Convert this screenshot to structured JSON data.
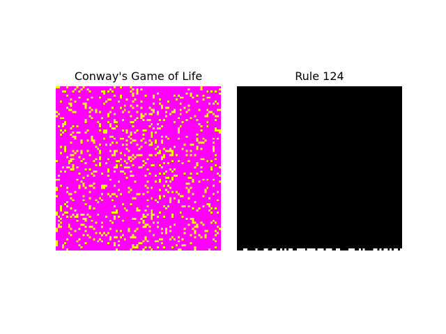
{
  "panels": [
    {
      "title": "Conway's Game of Life",
      "grid_size": 80,
      "alive_color": "#ffff00",
      "dead_color": "#ff00ff",
      "approx_alive_fraction": 0.14
    },
    {
      "title": "Rule 124",
      "grid_size": 80,
      "on_color": "#ffffff",
      "off_color": "#000000",
      "state": "single initial row at bottom, all other rows empty"
    }
  ]
}
